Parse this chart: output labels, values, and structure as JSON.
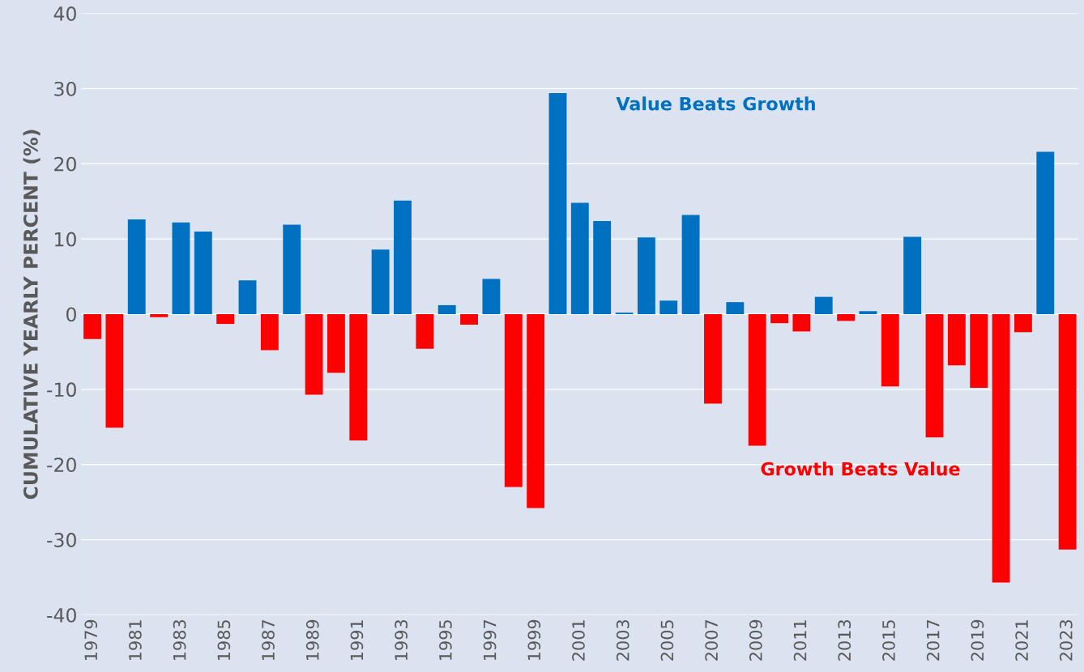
{
  "chart_data": {
    "type": "bar",
    "ylabel": "CUMULATIVE YEARLY PERCENT (%)",
    "categories": [
      "1979",
      null,
      "1981",
      null,
      "1983",
      null,
      "1985",
      null,
      "1987",
      null,
      "1989",
      null,
      "1991",
      null,
      "1993",
      null,
      "1995",
      null,
      "1997",
      null,
      "1999",
      null,
      "2001",
      null,
      "2003",
      null,
      "2005",
      null,
      "2007",
      null,
      "2009",
      null,
      "2011",
      null,
      "2013",
      null,
      "2015",
      null,
      "2017",
      null,
      "2019",
      null,
      "2021",
      null,
      "2023"
    ],
    "values": [
      -3.3,
      -15.1,
      12.6,
      -0.4,
      12.2,
      11.0,
      -1.3,
      4.5,
      -4.8,
      11.9,
      -10.7,
      -7.8,
      -16.8,
      8.6,
      15.1,
      -4.6,
      1.2,
      -1.4,
      4.7,
      -23.0,
      -25.8,
      29.4,
      14.8,
      12.4,
      0.2,
      10.2,
      1.8,
      13.2,
      -11.9,
      1.6,
      -17.5,
      -1.2,
      -2.3,
      2.3,
      -0.9,
      0.4,
      -9.6,
      10.3,
      -16.4,
      -6.8,
      -9.8,
      -35.7,
      -2.4,
      21.6,
      -31.3
    ],
    "colors": [
      "#ff0000",
      "#ff0000",
      "#0070c0",
      "#ff0000",
      "#0070c0",
      "#0070c0",
      "#ff0000",
      "#0070c0",
      "#ff0000",
      "#0070c0",
      "#ff0000",
      "#ff0000",
      "#ff0000",
      "#0070c0",
      "#0070c0",
      "#ff0000",
      "#0070c0",
      "#ff0000",
      "#0070c0",
      "#ff0000",
      "#ff0000",
      "#0070c0",
      "#0070c0",
      "#0070c0",
      "#0070c0",
      "#0070c0",
      "#0070c0",
      "#0070c0",
      "#ff0000",
      "#0070c0",
      "#ff0000",
      "#ff0000",
      "#ff0000",
      "#0070c0",
      "#ff0000",
      "#0070c0",
      "#ff0000",
      "#0070c0",
      "#ff0000",
      "#ff0000",
      "#ff0000",
      "#ff0000",
      "#ff0000",
      "#0070c0",
      "#ff0000"
    ],
    "ylim": [
      -40,
      40
    ],
    "yticks": [
      -40,
      -30,
      -20,
      -10,
      0,
      10,
      20,
      30,
      40
    ],
    "grid": "y",
    "annotations": [
      "Value Beats Growth",
      "Growth Beats Value"
    ]
  }
}
